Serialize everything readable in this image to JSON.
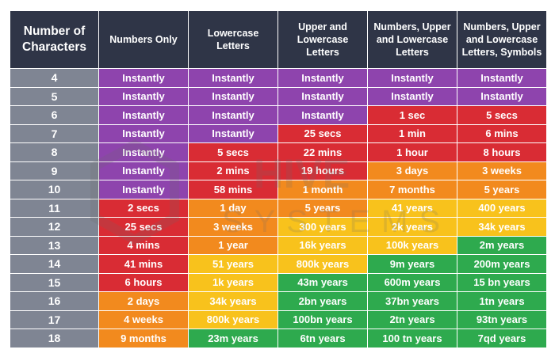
{
  "columns": [
    "Number of Characters",
    "Numbers Only",
    "Lowercase Letters",
    "Upper and Lowercase Letters",
    "Numbers, Upper and Lowercase Letters",
    "Numbers, Upper and Lowercase Letters, Symbols"
  ],
  "colors": {
    "header": "#2f3547",
    "number_column": "#7f8593",
    "purple": "#8e44ad",
    "red": "#d92c34",
    "orange": "#f28a1e",
    "yellow": "#f8c21c",
    "green": "#2eaa4e"
  },
  "rows": [
    {
      "n": "4",
      "cells": [
        {
          "text": "Instantly",
          "level": "purple"
        },
        {
          "text": "Instantly",
          "level": "purple"
        },
        {
          "text": "Instantly",
          "level": "purple"
        },
        {
          "text": "Instantly",
          "level": "purple"
        },
        {
          "text": "Instantly",
          "level": "purple"
        }
      ]
    },
    {
      "n": "5",
      "cells": [
        {
          "text": "Instantly",
          "level": "purple"
        },
        {
          "text": "Instantly",
          "level": "purple"
        },
        {
          "text": "Instantly",
          "level": "purple"
        },
        {
          "text": "Instantly",
          "level": "purple"
        },
        {
          "text": "Instantly",
          "level": "purple"
        }
      ]
    },
    {
      "n": "6",
      "cells": [
        {
          "text": "Instantly",
          "level": "purple"
        },
        {
          "text": "Instantly",
          "level": "purple"
        },
        {
          "text": "Instantly",
          "level": "purple"
        },
        {
          "text": "1 sec",
          "level": "red"
        },
        {
          "text": "5 secs",
          "level": "red"
        }
      ]
    },
    {
      "n": "7",
      "cells": [
        {
          "text": "Instantly",
          "level": "purple"
        },
        {
          "text": "Instantly",
          "level": "purple"
        },
        {
          "text": "25 secs",
          "level": "red"
        },
        {
          "text": "1 min",
          "level": "red"
        },
        {
          "text": "6 mins",
          "level": "red"
        }
      ]
    },
    {
      "n": "8",
      "cells": [
        {
          "text": "Instantly",
          "level": "purple"
        },
        {
          "text": "5 secs",
          "level": "red"
        },
        {
          "text": "22 mins",
          "level": "red"
        },
        {
          "text": "1 hour",
          "level": "red"
        },
        {
          "text": "8 hours",
          "level": "red"
        }
      ]
    },
    {
      "n": "9",
      "cells": [
        {
          "text": "Instantly",
          "level": "purple"
        },
        {
          "text": "2 mins",
          "level": "red"
        },
        {
          "text": "19 hours",
          "level": "red"
        },
        {
          "text": "3 days",
          "level": "orange"
        },
        {
          "text": "3 weeks",
          "level": "orange"
        }
      ]
    },
    {
      "n": "10",
      "cells": [
        {
          "text": "Instantly",
          "level": "purple"
        },
        {
          "text": "58 mins",
          "level": "red"
        },
        {
          "text": "1 month",
          "level": "orange"
        },
        {
          "text": "7 months",
          "level": "orange"
        },
        {
          "text": "5 years",
          "level": "orange"
        }
      ]
    },
    {
      "n": "11",
      "cells": [
        {
          "text": "2 secs",
          "level": "red"
        },
        {
          "text": "1 day",
          "level": "orange"
        },
        {
          "text": "5 years",
          "level": "orange"
        },
        {
          "text": "41 years",
          "level": "yellow"
        },
        {
          "text": "400 years",
          "level": "yellow"
        }
      ]
    },
    {
      "n": "12",
      "cells": [
        {
          "text": "25 secs",
          "level": "red"
        },
        {
          "text": "3 weeks",
          "level": "orange"
        },
        {
          "text": "300 years",
          "level": "yellow"
        },
        {
          "text": "2k years",
          "level": "yellow"
        },
        {
          "text": "34k years",
          "level": "yellow"
        }
      ]
    },
    {
      "n": "13",
      "cells": [
        {
          "text": "4 mins",
          "level": "red"
        },
        {
          "text": "1 year",
          "level": "orange"
        },
        {
          "text": "16k years",
          "level": "yellow"
        },
        {
          "text": "100k years",
          "level": "yellow"
        },
        {
          "text": "2m years",
          "level": "green"
        }
      ]
    },
    {
      "n": "14",
      "cells": [
        {
          "text": "41 mins",
          "level": "red"
        },
        {
          "text": "51 years",
          "level": "yellow"
        },
        {
          "text": "800k years",
          "level": "yellow"
        },
        {
          "text": "9m years",
          "level": "green"
        },
        {
          "text": "200m years",
          "level": "green"
        }
      ]
    },
    {
      "n": "15",
      "cells": [
        {
          "text": "6 hours",
          "level": "red"
        },
        {
          "text": "1k years",
          "level": "yellow"
        },
        {
          "text": "43m years",
          "level": "green"
        },
        {
          "text": "600m years",
          "level": "green"
        },
        {
          "text": "15 bn years",
          "level": "green"
        }
      ]
    },
    {
      "n": "16",
      "cells": [
        {
          "text": "2 days",
          "level": "orange"
        },
        {
          "text": "34k years",
          "level": "yellow"
        },
        {
          "text": "2bn years",
          "level": "green"
        },
        {
          "text": "37bn years",
          "level": "green"
        },
        {
          "text": "1tn years",
          "level": "green"
        }
      ]
    },
    {
      "n": "17",
      "cells": [
        {
          "text": "4 weeks",
          "level": "orange"
        },
        {
          "text": "800k years",
          "level": "yellow"
        },
        {
          "text": "100bn years",
          "level": "green"
        },
        {
          "text": "2tn years",
          "level": "green"
        },
        {
          "text": "93tn years",
          "level": "green"
        }
      ]
    },
    {
      "n": "18",
      "cells": [
        {
          "text": "9 months",
          "level": "orange"
        },
        {
          "text": "23m years",
          "level": "green"
        },
        {
          "text": "6tn years",
          "level": "green"
        },
        {
          "text": "100 tn years",
          "level": "green"
        },
        {
          "text": "7qd years",
          "level": "green"
        }
      ]
    }
  ],
  "watermark": {
    "line1": "HIVE",
    "line2": "SYSTEMS"
  }
}
